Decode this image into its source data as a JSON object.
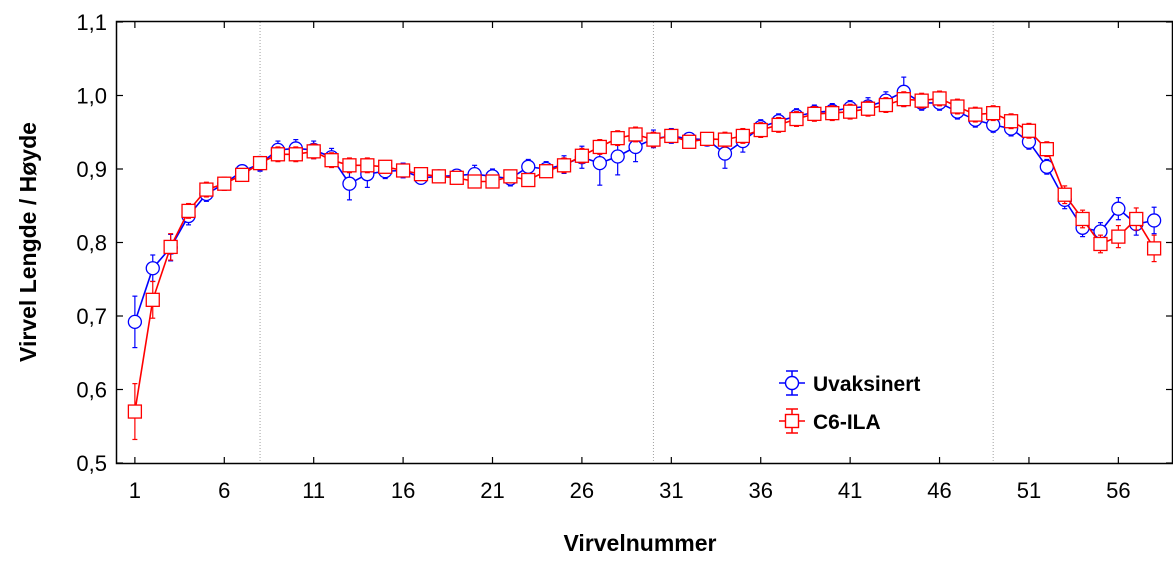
{
  "chart_data": {
    "type": "line",
    "title": "",
    "xlabel": "Virvelnummer",
    "ylabel": "Virvel Lengde / Høyde",
    "xlim": [
      0,
      59
    ],
    "ylim": [
      0.5,
      1.1
    ],
    "x_ticks": [
      1,
      6,
      11,
      16,
      21,
      26,
      31,
      36,
      41,
      46,
      51,
      56
    ],
    "x_tick_labels": [
      "1",
      "6",
      "11",
      "16",
      "21",
      "26",
      "31",
      "36",
      "41",
      "46",
      "51",
      "56"
    ],
    "y_ticks": [
      0.5,
      0.6,
      0.7,
      0.8,
      0.9,
      1.0,
      1.1
    ],
    "y_tick_labels": [
      "0,5",
      "0,6",
      "0,7",
      "0,8",
      "0,9",
      "1,0",
      "1,1"
    ],
    "vertical_reference_lines": [
      8,
      30,
      49
    ],
    "grid": false,
    "legend_position": "bottom-right",
    "x": [
      1,
      2,
      3,
      4,
      5,
      6,
      7,
      8,
      9,
      10,
      11,
      12,
      13,
      14,
      15,
      16,
      17,
      18,
      19,
      20,
      21,
      22,
      23,
      24,
      25,
      26,
      27,
      28,
      29,
      30,
      31,
      32,
      33,
      34,
      35,
      36,
      37,
      38,
      39,
      40,
      41,
      42,
      43,
      44,
      45,
      46,
      47,
      48,
      49,
      50,
      51,
      52,
      53,
      54,
      55,
      56,
      57,
      58
    ],
    "series": [
      {
        "name": "Uvaksinert",
        "color": "#0000ff",
        "marker": "circle",
        "values": [
          0.692,
          0.765,
          0.793,
          0.836,
          0.866,
          0.88,
          0.897,
          0.907,
          0.926,
          0.928,
          0.926,
          0.916,
          0.88,
          0.893,
          0.897,
          0.898,
          0.888,
          0.89,
          0.891,
          0.893,
          0.89,
          0.887,
          0.903,
          0.9,
          0.906,
          0.916,
          0.908,
          0.917,
          0.93,
          0.941,
          0.945,
          0.941,
          0.94,
          0.921,
          0.938,
          0.957,
          0.965,
          0.972,
          0.977,
          0.979,
          0.983,
          0.985,
          0.993,
          1.005,
          0.99,
          0.99,
          0.978,
          0.967,
          0.96,
          0.955,
          0.937,
          0.903,
          0.858,
          0.82,
          0.815,
          0.846,
          0.825,
          0.83
        ],
        "errors": [
          0.035,
          0.018,
          0.018,
          0.012,
          0.01,
          0.009,
          0.008,
          0.01,
          0.012,
          0.012,
          0.012,
          0.012,
          0.022,
          0.018,
          0.01,
          0.01,
          0.008,
          0.008,
          0.008,
          0.012,
          0.01,
          0.01,
          0.01,
          0.01,
          0.012,
          0.015,
          0.03,
          0.025,
          0.02,
          0.012,
          0.01,
          0.008,
          0.008,
          0.02,
          0.015,
          0.01,
          0.01,
          0.01,
          0.01,
          0.01,
          0.01,
          0.012,
          0.012,
          0.02,
          0.01,
          0.01,
          0.01,
          0.01,
          0.01,
          0.01,
          0.01,
          0.01,
          0.012,
          0.012,
          0.012,
          0.015,
          0.015,
          0.018
        ]
      },
      {
        "name": "C6-ILA",
        "color": "#ff0000",
        "marker": "square",
        "values": [
          0.57,
          0.722,
          0.794,
          0.843,
          0.872,
          0.88,
          0.892,
          0.908,
          0.92,
          0.92,
          0.924,
          0.912,
          0.905,
          0.905,
          0.903,
          0.898,
          0.893,
          0.89,
          0.888,
          0.883,
          0.883,
          0.89,
          0.885,
          0.897,
          0.905,
          0.918,
          0.93,
          0.942,
          0.947,
          0.94,
          0.945,
          0.937,
          0.941,
          0.94,
          0.945,
          0.953,
          0.96,
          0.968,
          0.975,
          0.976,
          0.978,
          0.982,
          0.987,
          0.995,
          0.993,
          0.996,
          0.985,
          0.974,
          0.976,
          0.965,
          0.952,
          0.927,
          0.865,
          0.832,
          0.798,
          0.808,
          0.832,
          0.792
        ],
        "errors": [
          0.038,
          0.025,
          0.018,
          0.01,
          0.01,
          0.009,
          0.008,
          0.008,
          0.01,
          0.01,
          0.01,
          0.01,
          0.01,
          0.01,
          0.008,
          0.008,
          0.008,
          0.008,
          0.008,
          0.008,
          0.008,
          0.008,
          0.008,
          0.008,
          0.01,
          0.01,
          0.01,
          0.01,
          0.01,
          0.01,
          0.008,
          0.008,
          0.008,
          0.01,
          0.01,
          0.01,
          0.01,
          0.01,
          0.01,
          0.01,
          0.01,
          0.01,
          0.01,
          0.01,
          0.01,
          0.01,
          0.01,
          0.01,
          0.01,
          0.01,
          0.01,
          0.01,
          0.012,
          0.012,
          0.012,
          0.015,
          0.015,
          0.018
        ]
      }
    ]
  }
}
